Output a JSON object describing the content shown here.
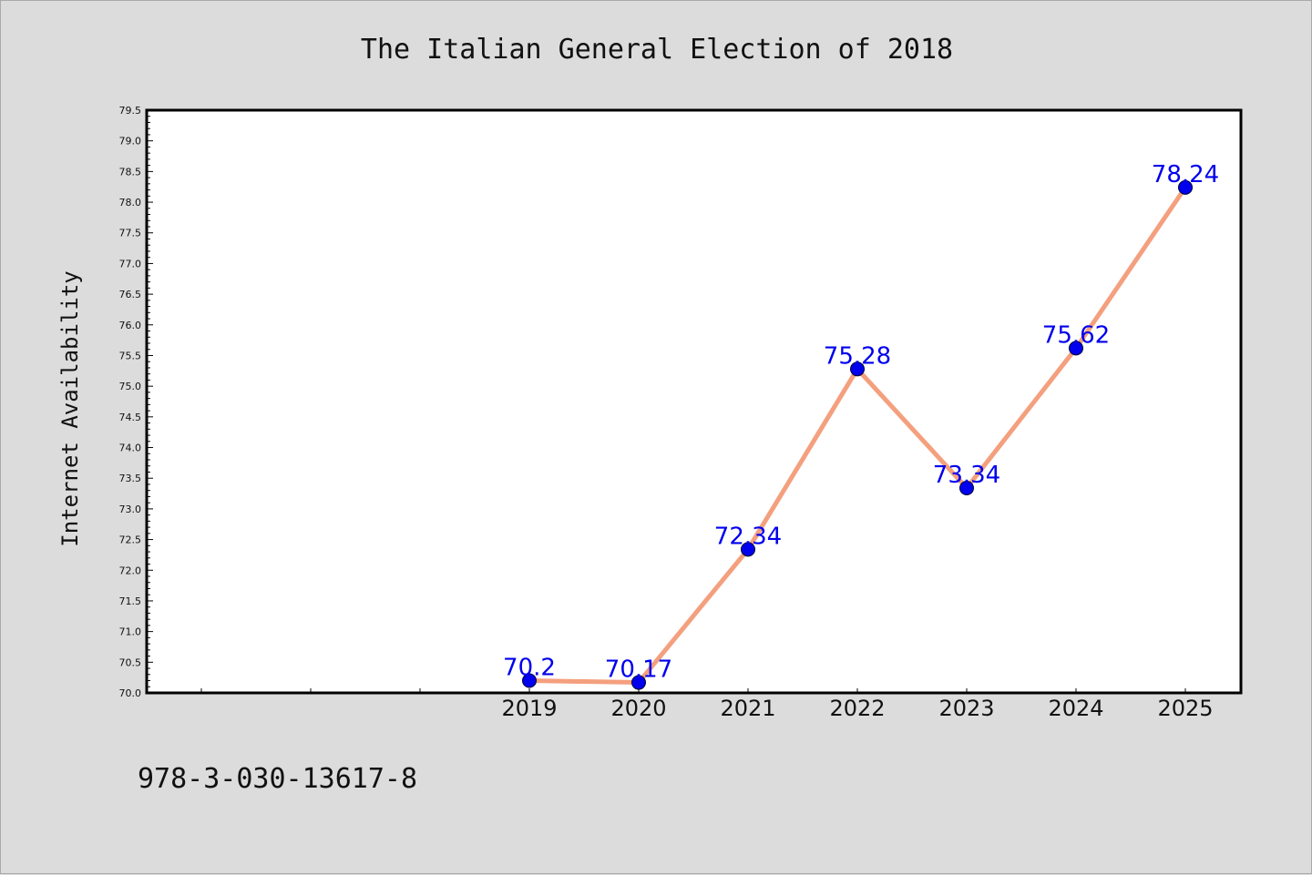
{
  "chart_data": {
    "type": "line",
    "title": "The Italian General Election of 2018",
    "xlabel": "",
    "ylabel": "Internet Availability",
    "categories": [
      "2019",
      "2020",
      "2021",
      "2022",
      "2023",
      "2024",
      "2025"
    ],
    "series": [
      {
        "values": [
          70.2,
          70.17,
          72.34,
          75.28,
          73.34,
          75.62,
          78.24
        ],
        "data_labels": [
          "70.2",
          "70.17",
          "72.34",
          "75.28",
          "73.34",
          "75.62",
          "78.24"
        ],
        "line_color": "#f4a07e",
        "marker_color": "#0000ee"
      }
    ],
    "ylim": [
      70.0,
      79.5
    ],
    "y_ticks": [
      "70.0",
      "70.5",
      "71.0",
      "71.5",
      "72.0",
      "72.5",
      "73.0",
      "73.5",
      "74.0",
      "74.5",
      "75.0",
      "75.5",
      "76.0",
      "76.5",
      "77.0",
      "77.5",
      "78.0",
      "78.5",
      "79.0",
      "79.5"
    ],
    "grid": false,
    "legend": "none"
  },
  "footnote": "978-3-030-13617-8",
  "colors": {
    "background": "#dcdcdc",
    "plot_background": "#ffffff",
    "label_color": "#0000ee",
    "line_color": "#f4a07e"
  }
}
